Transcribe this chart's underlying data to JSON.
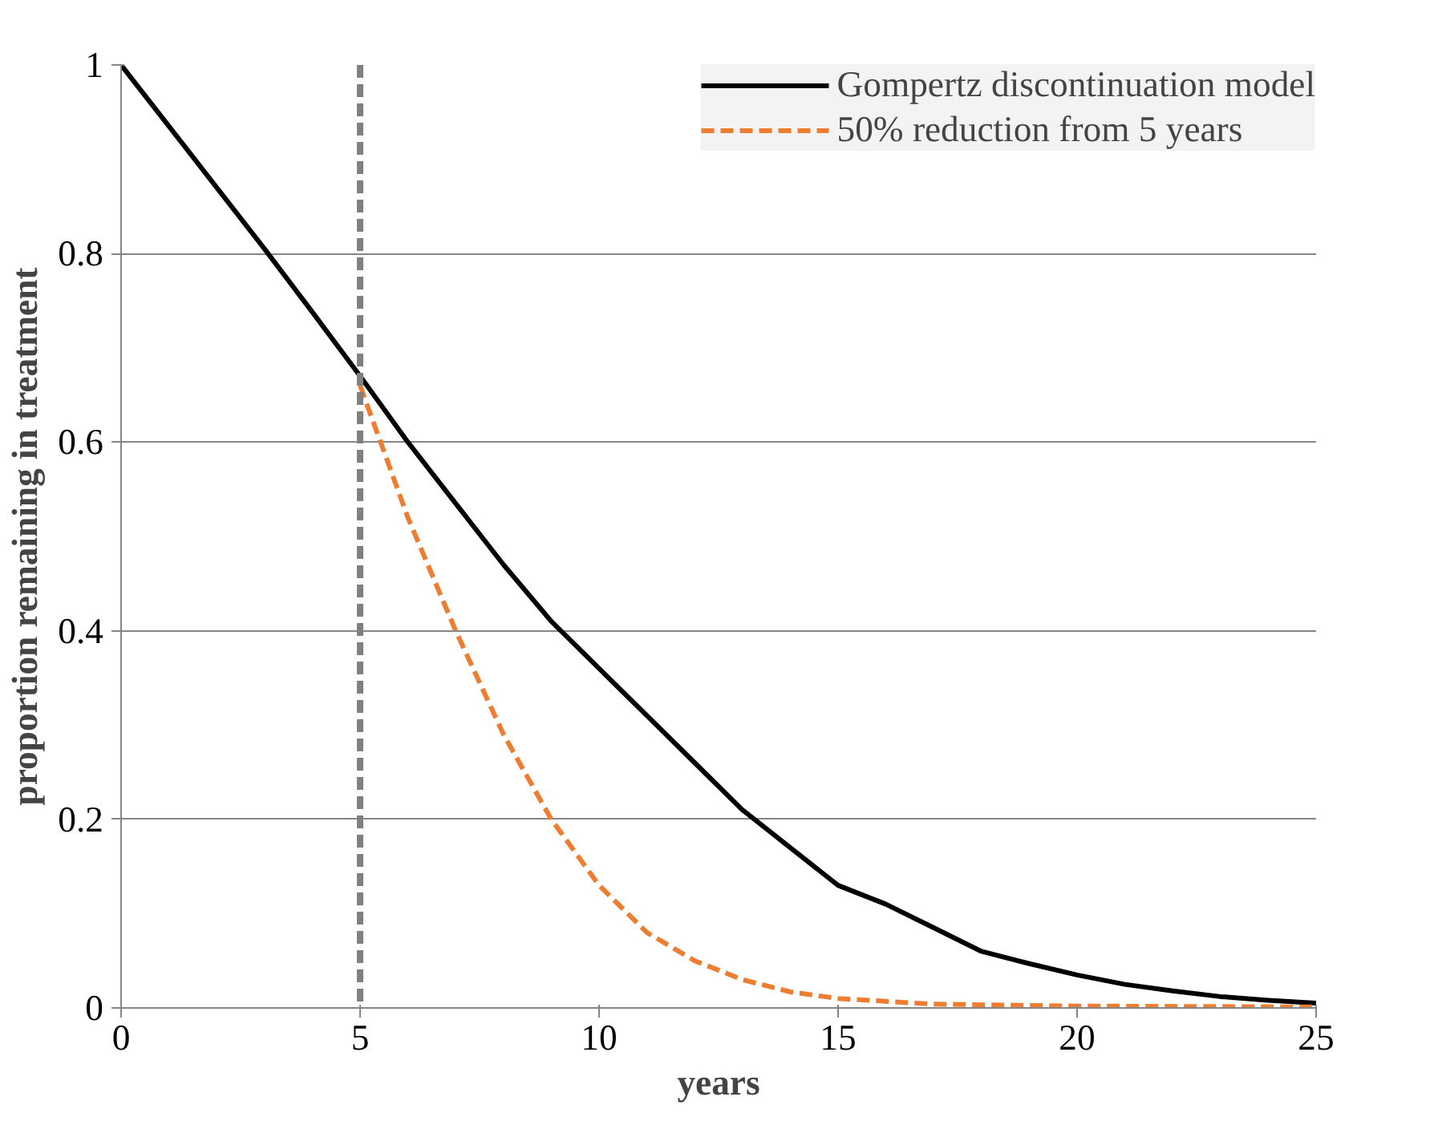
{
  "chart_data": {
    "type": "line",
    "xlabel": "years",
    "ylabel": "proportion remaining in treatment",
    "xlim": [
      0,
      25
    ],
    "ylim": [
      0,
      1
    ],
    "xticks": [
      0,
      5,
      10,
      15,
      20,
      25
    ],
    "yticks": [
      0,
      {
        "value": 0.2,
        "label": "0.2"
      },
      {
        "value": 0.4,
        "label": "0.4"
      },
      {
        "value": 0.6,
        "label": "0.6"
      },
      {
        "value": 0.8,
        "label": "0.8"
      },
      1
    ],
    "grid": "y",
    "legend": "top right",
    "marker": "none",
    "series": [
      {
        "name": "Gompertz discontinuation model",
        "color": "#000000",
        "line_style": "solid",
        "x": [
          0,
          1,
          2,
          3,
          4,
          5,
          6,
          7,
          8,
          9,
          10,
          11,
          12,
          13,
          14,
          15,
          16,
          17,
          18,
          19,
          20,
          21,
          22,
          23,
          24,
          25
        ],
        "values": [
          1,
          0.935,
          0.87,
          0.805,
          0.738,
          0.67,
          0.6,
          0.535,
          0.47,
          0.41,
          0.36,
          0.31,
          0.26,
          0.21,
          0.17,
          0.13,
          0.11,
          0.085,
          0.06,
          0.047,
          0.035,
          0.025,
          0.018,
          0.012,
          0.008,
          0.005
        ]
      },
      {
        "name": "50% reduction from 5 years",
        "color": "#ed7d31",
        "line_style": "dashed",
        "x": [
          5,
          6,
          7,
          8,
          9,
          10,
          11,
          12,
          13,
          14,
          15,
          17,
          20,
          25
        ],
        "values": [
          0.66,
          0.52,
          0.4,
          0.29,
          0.2,
          0.13,
          0.08,
          0.05,
          0.03,
          0.017,
          0.01,
          0.004,
          0.002,
          0.001
        ]
      }
    ],
    "ref_lines": [
      {
        "axis": "x",
        "value": 5,
        "color": "#808080",
        "line_style": "dashed"
      }
    ]
  }
}
